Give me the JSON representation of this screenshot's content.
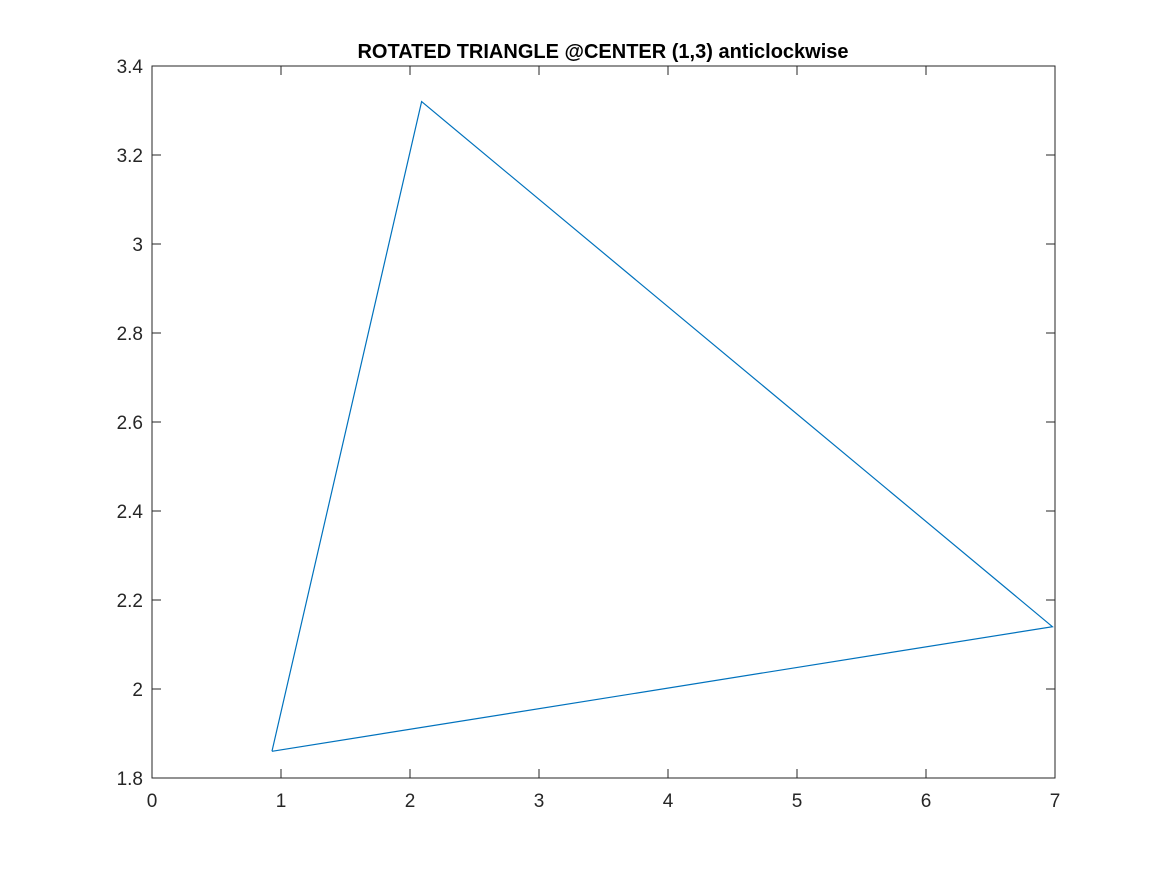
{
  "chart_data": {
    "type": "line",
    "title": "ROTATED TRIANGLE @CENTER (1,3) anticlockwise",
    "xlabel": "",
    "ylabel": "",
    "xlim": [
      0,
      7
    ],
    "ylim": [
      1.8,
      3.4
    ],
    "xticks": [
      0,
      1,
      2,
      3,
      4,
      5,
      6,
      7
    ],
    "xtick_labels": [
      "0",
      "1",
      "2",
      "3",
      "4",
      "5",
      "6",
      "7"
    ],
    "yticks": [
      1.8,
      2.0,
      2.2,
      2.4,
      2.6,
      2.8,
      3.0,
      3.2,
      3.4
    ],
    "ytick_labels": [
      "1.8",
      "2",
      "2.2",
      "2.4",
      "2.6",
      "2.8",
      "3",
      "3.2",
      "3.4"
    ],
    "grid": false,
    "series": [
      {
        "color": "#0072bd",
        "x": [
          0.93,
          2.09,
          6.98,
          0.93
        ],
        "y": [
          1.86,
          3.32,
          2.14,
          1.86
        ]
      }
    ]
  }
}
